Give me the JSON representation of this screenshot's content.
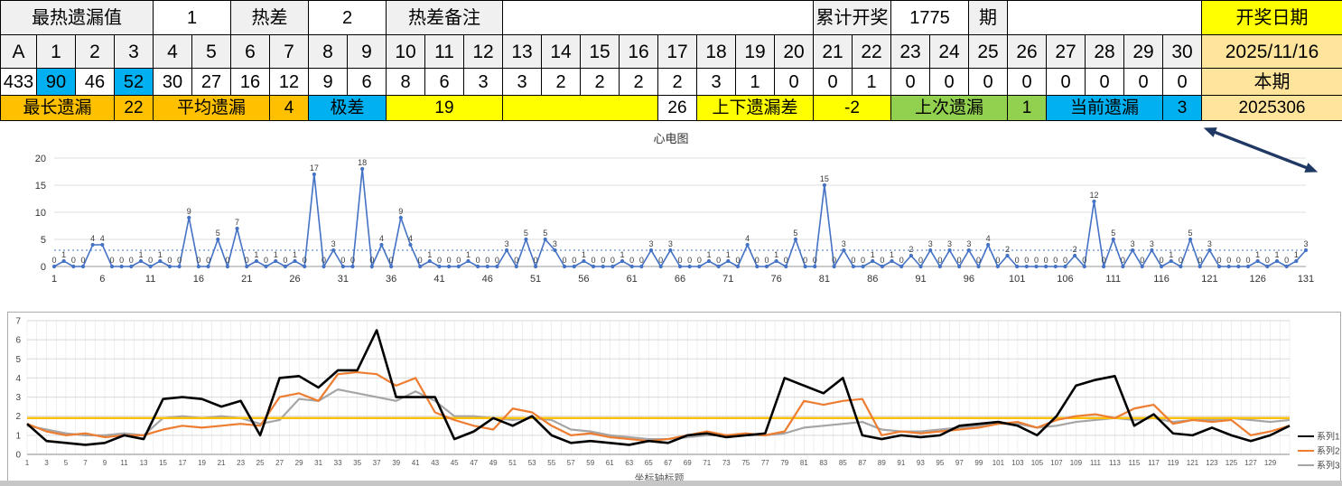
{
  "palette": {
    "header_gray": "#F0F0F0",
    "white": "#FFFFFF",
    "yellow": "#FFFF00",
    "orange": "#FFC000",
    "cyan": "#00B0F0",
    "green": "#92D050",
    "tan": "#FFE49C",
    "chart_blue": "#4472C4",
    "arrow_navy": "#1F3864"
  },
  "table": {
    "rows": [
      {
        "name": "summary-row-top",
        "font": "fr0",
        "cells": [
          {
            "t": "最热遗漏值",
            "s": 4,
            "bg": "hdr",
            "n": "hottest-miss-label"
          },
          {
            "t": "1",
            "s": 2,
            "bg": "white",
            "n": "hottest-miss-value"
          },
          {
            "t": "热差",
            "s": 2,
            "bg": "hdr",
            "n": "heat-diff-label"
          },
          {
            "t": "2",
            "s": 2,
            "bg": "white",
            "n": "heat-diff-value"
          },
          {
            "t": "热差备注",
            "s": 3,
            "bg": "hdr",
            "n": "heat-diff-note-label"
          },
          {
            "t": "",
            "s": 8,
            "bg": "white",
            "n": "empty-cell"
          },
          {
            "t": "累计开奖",
            "s": 2,
            "bg": "hdr",
            "n": "total-draws-label"
          },
          {
            "t": "1775",
            "s": 2,
            "bg": "white",
            "n": "total-draws-value"
          },
          {
            "t": "期",
            "s": 1,
            "bg": "hdr",
            "n": "period-unit-label"
          },
          {
            "t": "",
            "s": 5,
            "bg": "white",
            "n": "empty-cell"
          },
          {
            "t": "开奖日期",
            "s": 1,
            "bg": "yellow",
            "n": "draw-date-label"
          }
        ]
      },
      {
        "name": "number-header-row",
        "font": "fr1",
        "cells": [
          {
            "t": "A",
            "bg": "hdr"
          },
          {
            "t": "1",
            "bg": "hdr"
          },
          {
            "t": "2",
            "bg": "hdr"
          },
          {
            "t": "3",
            "bg": "hdr"
          },
          {
            "t": "4",
            "bg": "hdr"
          },
          {
            "t": "5",
            "bg": "hdr"
          },
          {
            "t": "6",
            "bg": "hdr"
          },
          {
            "t": "7",
            "bg": "hdr"
          },
          {
            "t": "8",
            "bg": "hdr"
          },
          {
            "t": "9",
            "bg": "hdr"
          },
          {
            "t": "10",
            "bg": "hdr"
          },
          {
            "t": "11",
            "bg": "hdr"
          },
          {
            "t": "12",
            "bg": "hdr"
          },
          {
            "t": "13",
            "bg": "hdr"
          },
          {
            "t": "14",
            "bg": "hdr"
          },
          {
            "t": "15",
            "bg": "hdr"
          },
          {
            "t": "16",
            "bg": "hdr"
          },
          {
            "t": "17",
            "bg": "hdr"
          },
          {
            "t": "18",
            "bg": "hdr"
          },
          {
            "t": "19",
            "bg": "hdr"
          },
          {
            "t": "20",
            "bg": "hdr"
          },
          {
            "t": "21",
            "bg": "hdr"
          },
          {
            "t": "22",
            "bg": "hdr"
          },
          {
            "t": "23",
            "bg": "hdr"
          },
          {
            "t": "24",
            "bg": "hdr"
          },
          {
            "t": "25",
            "bg": "hdr"
          },
          {
            "t": "26",
            "bg": "hdr"
          },
          {
            "t": "27",
            "bg": "hdr"
          },
          {
            "t": "28",
            "bg": "hdr"
          },
          {
            "t": "29",
            "bg": "hdr"
          },
          {
            "t": "30",
            "bg": "hdr"
          },
          {
            "t": "2025/11/16",
            "bg": "tan",
            "n": "draw-date-value"
          }
        ]
      },
      {
        "name": "miss-values-row",
        "font": "fr2",
        "cells": [
          {
            "t": "433"
          },
          {
            "t": "90",
            "bg": "cyan"
          },
          {
            "t": "46"
          },
          {
            "t": "52",
            "bg": "cyan"
          },
          {
            "t": "30"
          },
          {
            "t": "27"
          },
          {
            "t": "16"
          },
          {
            "t": "12"
          },
          {
            "t": "9"
          },
          {
            "t": "6"
          },
          {
            "t": "8"
          },
          {
            "t": "6"
          },
          {
            "t": "3"
          },
          {
            "t": "3"
          },
          {
            "t": "2"
          },
          {
            "t": "2"
          },
          {
            "t": "2"
          },
          {
            "t": "2"
          },
          {
            "t": "3"
          },
          {
            "t": "1"
          },
          {
            "t": "0"
          },
          {
            "t": "0"
          },
          {
            "t": "1"
          },
          {
            "t": "0"
          },
          {
            "t": "0"
          },
          {
            "t": "0"
          },
          {
            "t": "0"
          },
          {
            "t": "0"
          },
          {
            "t": "0"
          },
          {
            "t": "0"
          },
          {
            "t": "0"
          },
          {
            "t": "本期",
            "bg": "tan",
            "n": "current-period-label"
          }
        ]
      },
      {
        "name": "stats-row",
        "font": "fr3",
        "cells": [
          {
            "t": "最长遗漏",
            "s": 3,
            "bg": "orange",
            "n": "longest-miss-label"
          },
          {
            "t": "22",
            "s": 1,
            "bg": "orange",
            "n": "longest-miss-value"
          },
          {
            "t": "平均遗漏",
            "s": 3,
            "bg": "orange",
            "n": "average-miss-label"
          },
          {
            "t": "4",
            "s": 1,
            "bg": "orange",
            "n": "average-miss-value"
          },
          {
            "t": "极差",
            "s": 2,
            "bg": "cyan",
            "n": "range-label"
          },
          {
            "t": "19",
            "s": 3,
            "bg": "yellow",
            "n": "range-value"
          },
          {
            "t": "",
            "s": 4,
            "bg": "yellow",
            "n": "empty-cell"
          },
          {
            "t": "26",
            "s": 1,
            "bg": "white",
            "n": "misc-value-26"
          },
          {
            "t": "上下遗漏差",
            "s": 3,
            "bg": "yellow",
            "n": "updown-miss-diff-label"
          },
          {
            "t": "-2",
            "s": 2,
            "bg": "yellow",
            "n": "updown-miss-diff-value"
          },
          {
            "t": "上次遗漏",
            "s": 3,
            "bg": "green",
            "n": "previous-miss-label"
          },
          {
            "t": "1",
            "s": 1,
            "bg": "green",
            "n": "previous-miss-value"
          },
          {
            "t": "当前遗漏",
            "s": 3,
            "bg": "cyan",
            "n": "current-miss-label"
          },
          {
            "t": "3",
            "s": 1,
            "bg": "cyan",
            "n": "current-miss-value"
          },
          {
            "t": "2025306",
            "s": 1,
            "bg": "tan",
            "n": "issue-number-value"
          }
        ]
      }
    ]
  },
  "chart_data": [
    {
      "type": "line",
      "title": "心电图",
      "x_start": 1,
      "x_step": 1,
      "xtick_step": 5,
      "ylim": [
        0,
        20
      ],
      "yticks": [
        0,
        5,
        10,
        15,
        20
      ],
      "avg_line": 3,
      "color": "#4472C4",
      "point_labels": true,
      "values": [
        0,
        1,
        0,
        0,
        4,
        4,
        0,
        0,
        0,
        1,
        0,
        1,
        0,
        0,
        9,
        0,
        0,
        5,
        0,
        7,
        0,
        1,
        0,
        1,
        0,
        1,
        0,
        17,
        0,
        3,
        0,
        0,
        18,
        0,
        4,
        0,
        9,
        4,
        0,
        1,
        0,
        0,
        0,
        1,
        0,
        0,
        0,
        3,
        0,
        5,
        0,
        5,
        3,
        0,
        0,
        1,
        0,
        0,
        0,
        1,
        0,
        0,
        3,
        0,
        3,
        0,
        0,
        0,
        1,
        0,
        1,
        0,
        4,
        0,
        0,
        1,
        0,
        5,
        0,
        0,
        15,
        0,
        3,
        0,
        0,
        1,
        0,
        1,
        0,
        2,
        0,
        3,
        0,
        3,
        0,
        3,
        0,
        4,
        0,
        2,
        0,
        0,
        0,
        0,
        0,
        0,
        2,
        0,
        12,
        0,
        5,
        0,
        3,
        0,
        3,
        0,
        1,
        0,
        5,
        0,
        3,
        0,
        0,
        0,
        0,
        1,
        0,
        1,
        0,
        1,
        3
      ]
    },
    {
      "type": "line",
      "title": "",
      "xlabel": "坐标轴标题",
      "x_start": 1,
      "x_step": 2,
      "count": 66,
      "ylim": [
        0,
        7
      ],
      "yticks": [
        0,
        1,
        2,
        3,
        4,
        5,
        6,
        7
      ],
      "legend": [
        "系列1",
        "系列2",
        "系列3"
      ],
      "legend_position": "right",
      "series": [
        {
          "name": "系列3",
          "color": "#A5A5A5",
          "width": 2.2,
          "values": [
            1.5,
            1.3,
            1.1,
            1.0,
            1.0,
            1.1,
            1.0,
            1.9,
            2.0,
            1.9,
            2.0,
            1.9,
            1.6,
            1.8,
            2.9,
            2.8,
            3.4,
            3.2,
            3.0,
            2.8,
            3.3,
            2.8,
            2.0,
            2.0,
            1.9,
            1.8,
            1.9,
            1.8,
            1.3,
            1.2,
            1.0,
            0.9,
            0.8,
            0.8,
            0.9,
            1.0,
            1.0,
            1.0,
            1.0,
            1.1,
            1.4,
            1.5,
            1.6,
            1.7,
            1.3,
            1.2,
            1.2,
            1.3,
            1.4,
            1.5,
            1.6,
            1.6,
            1.4,
            1.5,
            1.7,
            1.8,
            1.9,
            1.8,
            1.9,
            1.7,
            1.8,
            1.8,
            1.9,
            1.8,
            1.7,
            1.8
          ]
        },
        {
          "name": "系列4",
          "color": "#FFC000",
          "width": 2.4,
          "constant": 1.9
        },
        {
          "name": "系列2",
          "color": "#ED7D31",
          "width": 2.2,
          "values": [
            1.6,
            1.2,
            1.0,
            1.1,
            0.9,
            1.0,
            1.0,
            1.3,
            1.5,
            1.4,
            1.5,
            1.6,
            1.5,
            3.0,
            3.2,
            2.8,
            4.2,
            4.3,
            4.2,
            3.6,
            4.0,
            2.2,
            1.8,
            1.5,
            1.3,
            2.4,
            2.2,
            1.5,
            1.0,
            1.1,
            0.9,
            0.8,
            0.7,
            0.8,
            1.0,
            1.2,
            1.0,
            1.1,
            1.0,
            1.2,
            2.8,
            2.6,
            2.8,
            2.9,
            1.0,
            1.2,
            1.1,
            1.2,
            1.3,
            1.4,
            1.6,
            1.7,
            1.4,
            1.8,
            2.0,
            2.1,
            1.9,
            2.4,
            2.6,
            1.6,
            1.8,
            1.7,
            1.8,
            1.0,
            1.2,
            1.5
          ]
        },
        {
          "name": "系列1",
          "color": "#000000",
          "width": 2.6,
          "values": [
            1.6,
            0.7,
            0.6,
            0.5,
            0.6,
            1.0,
            0.8,
            2.9,
            3.0,
            2.9,
            2.5,
            2.8,
            1.0,
            4.0,
            4.1,
            3.5,
            4.4,
            4.4,
            6.5,
            3.0,
            3.0,
            3.0,
            0.8,
            1.2,
            1.9,
            1.5,
            2.0,
            1.0,
            0.6,
            0.7,
            0.6,
            0.5,
            0.7,
            0.6,
            1.0,
            1.1,
            0.9,
            1.0,
            1.1,
            4.0,
            3.6,
            3.2,
            4.0,
            1.0,
            0.8,
            1.0,
            0.9,
            1.0,
            1.5,
            1.6,
            1.7,
            1.5,
            1.0,
            2.0,
            3.6,
            3.9,
            4.1,
            1.5,
            2.1,
            1.1,
            1.0,
            1.4,
            1.0,
            0.7,
            1.0,
            1.5
          ]
        }
      ]
    }
  ]
}
